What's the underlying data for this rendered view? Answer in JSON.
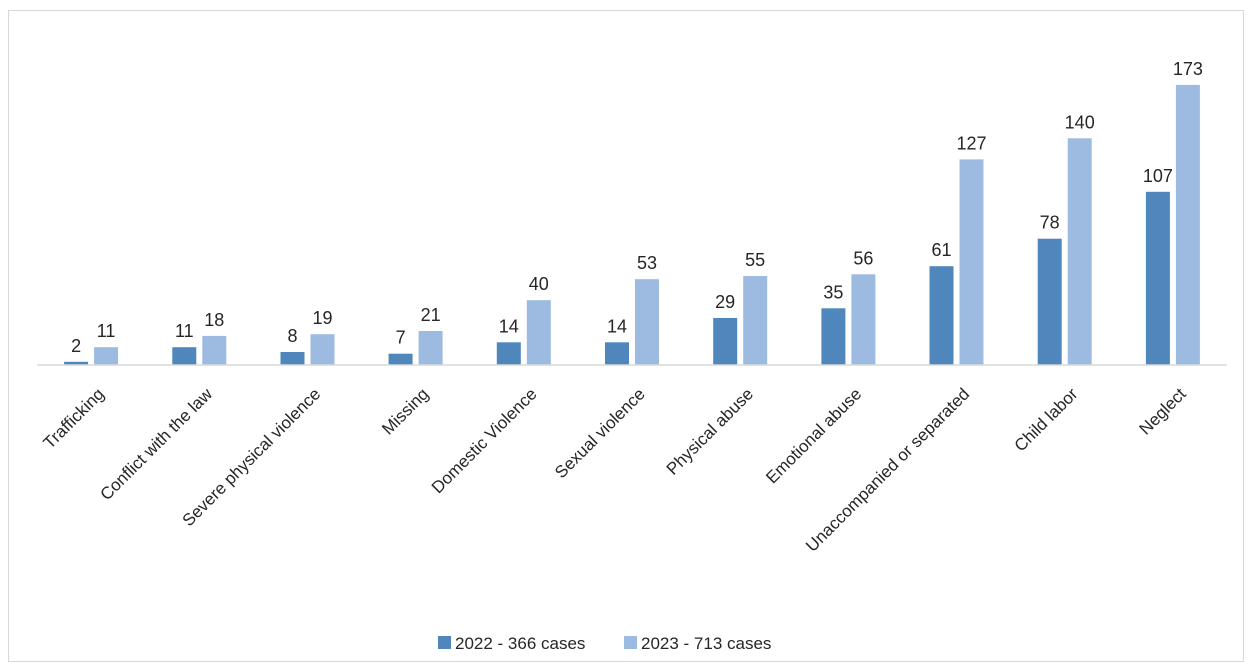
{
  "chart_data": {
    "type": "bar",
    "title": "",
    "xlabel": "",
    "ylabel": "",
    "categories": [
      "Trafficking",
      "Conflict with the law",
      "Severe physical violence",
      "Missing",
      "Domestic Violence",
      "Sexual violence",
      "Physical abuse",
      "Emotional abuse",
      "Unaccompanied or separated",
      "Child labor",
      "Neglect"
    ],
    "series": [
      {
        "name": "2022 - 366 cases",
        "color": "#4f87bd",
        "values": [
          2,
          11,
          8,
          7,
          14,
          14,
          29,
          35,
          61,
          78,
          107
        ]
      },
      {
        "name": "2023 - 713 cases",
        "color": "#9dbbe0",
        "values": [
          11,
          18,
          19,
          21,
          40,
          53,
          55,
          56,
          127,
          140,
          173
        ]
      }
    ],
    "ylim": [
      0,
      200
    ],
    "grid": false,
    "legend_position": "bottom",
    "data_labels": true,
    "category_label_rotation": "-45deg"
  }
}
